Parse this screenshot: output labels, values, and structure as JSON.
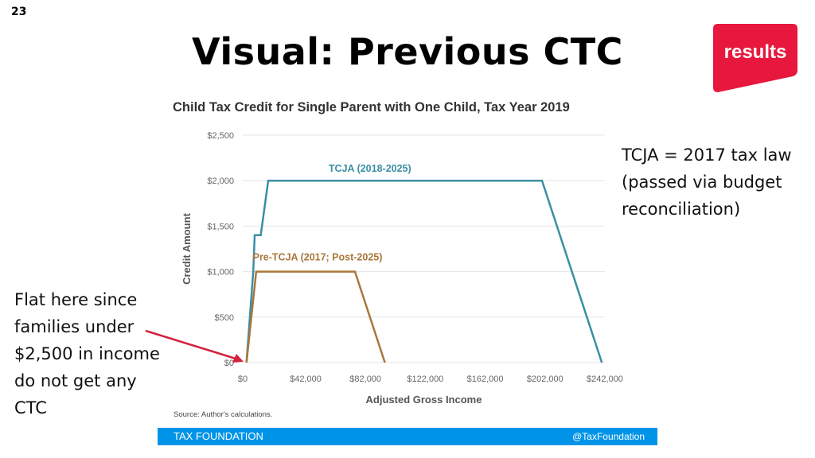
{
  "slide": {
    "number": "23",
    "title": "Visual: Previous CTC"
  },
  "logo": {
    "text": "results",
    "color": "#e8173d"
  },
  "notes": {
    "right": [
      "TCJA = 2017 tax law",
      "(passed via budget",
      "reconciliation)"
    ],
    "left": [
      "Flat here since",
      "families under",
      "$2,500 in income",
      "do not get any CTC"
    ]
  },
  "arrow_color": "#d4213d",
  "chart_data": {
    "type": "line",
    "title": "Child Tax Credit for Single Parent with One Child, Tax Year 2019",
    "xlabel": "Adjusted Gross Income",
    "ylabel": "Credit Amount",
    "xlim": [
      0,
      242000
    ],
    "ylim": [
      0,
      2500
    ],
    "x_ticks": [
      0,
      42000,
      82000,
      122000,
      162000,
      202000,
      242000
    ],
    "x_tick_labels": [
      "$0",
      "$42,000",
      "$82,000",
      "$122,000",
      "$162,000",
      "$202,000",
      "$242,000"
    ],
    "y_ticks": [
      0,
      500,
      1000,
      1500,
      2000,
      2500
    ],
    "y_tick_labels": [
      "$0",
      "$500",
      "$1,000",
      "$1,500",
      "$2,000",
      "$2,500"
    ],
    "grid": true,
    "series": [
      {
        "name": "TCJA (2018-2025)",
        "color": "#3a8fa3",
        "points": [
          [
            2500,
            0
          ],
          [
            7000,
            1000
          ],
          [
            7000,
            1000
          ],
          [
            8000,
            1400
          ],
          [
            12000,
            1400
          ],
          [
            17000,
            2000
          ],
          [
            200000,
            2000
          ],
          [
            240000,
            0
          ]
        ]
      },
      {
        "name": "Pre-TCJA (2017; Post-2025)",
        "color": "#a8773a",
        "points": [
          [
            2500,
            0
          ],
          [
            9000,
            1000
          ],
          [
            75000,
            1000
          ],
          [
            95000,
            0
          ]
        ]
      }
    ],
    "source": "Source: Author's calculations."
  },
  "footer": {
    "left": "TAX FOUNDATION",
    "right": "@TaxFoundation",
    "color": "#0094e8"
  }
}
